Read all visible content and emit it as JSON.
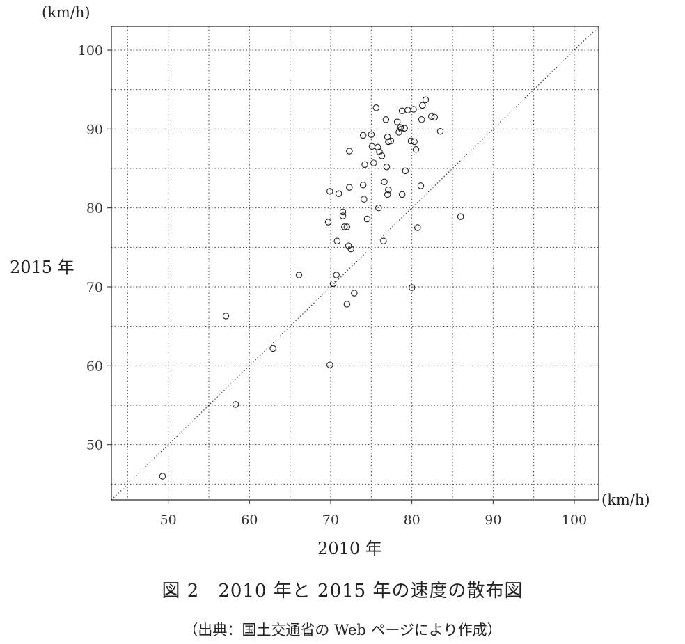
{
  "chart_data": {
    "type": "scatter",
    "title": "",
    "xlabel": "2010 年",
    "ylabel": "2015 年",
    "x_unit": "(km/h)",
    "y_unit": "(km/h)",
    "xlim": [
      43,
      103
    ],
    "ylim": [
      43,
      103
    ],
    "xticks": [
      50,
      60,
      70,
      80,
      90,
      100
    ],
    "yticks": [
      50,
      60,
      70,
      80,
      90,
      100
    ],
    "grid": true,
    "grid_step": 5,
    "reference_line": "y = x",
    "marker": "open-circle",
    "points": [
      [
        49.3,
        46.0
      ],
      [
        57.1,
        66.3
      ],
      [
        58.3,
        55.1
      ],
      [
        62.9,
        62.2
      ],
      [
        66.1,
        71.5
      ],
      [
        69.7,
        78.2
      ],
      [
        69.9,
        82.1
      ],
      [
        69.9,
        60.1
      ],
      [
        70.3,
        70.4
      ],
      [
        70.7,
        71.5
      ],
      [
        70.8,
        75.8
      ],
      [
        71.0,
        81.8
      ],
      [
        71.5,
        79.5
      ],
      [
        71.5,
        79.0
      ],
      [
        71.7,
        77.6
      ],
      [
        72.0,
        77.6
      ],
      [
        72.0,
        67.8
      ],
      [
        72.2,
        75.2
      ],
      [
        72.3,
        82.6
      ],
      [
        72.3,
        87.2
      ],
      [
        72.5,
        74.8
      ],
      [
        72.9,
        69.2
      ],
      [
        74.0,
        89.2
      ],
      [
        74.0,
        82.9
      ],
      [
        74.1,
        81.1
      ],
      [
        74.2,
        85.5
      ],
      [
        74.5,
        78.6
      ],
      [
        75.0,
        89.3
      ],
      [
        75.1,
        87.8
      ],
      [
        75.3,
        85.7
      ],
      [
        75.6,
        92.7
      ],
      [
        75.8,
        87.7
      ],
      [
        75.9,
        80.0
      ],
      [
        76.0,
        87.1
      ],
      [
        76.3,
        86.6
      ],
      [
        76.5,
        75.8
      ],
      [
        76.6,
        83.3
      ],
      [
        76.8,
        91.2
      ],
      [
        76.9,
        85.2
      ],
      [
        77.0,
        81.7
      ],
      [
        77.0,
        89.0
      ],
      [
        77.1,
        82.3
      ],
      [
        77.1,
        88.4
      ],
      [
        77.4,
        88.5
      ],
      [
        78.2,
        90.9
      ],
      [
        78.4,
        89.6
      ],
      [
        78.6,
        90.2
      ],
      [
        78.7,
        90.0
      ],
      [
        78.8,
        81.7
      ],
      [
        78.8,
        92.3
      ],
      [
        79.1,
        90.1
      ],
      [
        79.2,
        84.7
      ],
      [
        79.5,
        92.4
      ],
      [
        79.9,
        88.5
      ],
      [
        80.0,
        69.9
      ],
      [
        80.2,
        92.5
      ],
      [
        80.3,
        88.4
      ],
      [
        80.5,
        87.4
      ],
      [
        80.7,
        77.5
      ],
      [
        81.1,
        82.8
      ],
      [
        81.2,
        91.2
      ],
      [
        81.3,
        93.0
      ],
      [
        81.7,
        93.7
      ],
      [
        82.4,
        91.6
      ],
      [
        82.8,
        91.5
      ],
      [
        83.5,
        89.7
      ],
      [
        86.0,
        78.9
      ]
    ]
  },
  "labels": {
    "caption": "図 2　2010 年と 2015 年の速度の散布図",
    "source": "（出典：国土交通省の Web ページにより作成）"
  }
}
